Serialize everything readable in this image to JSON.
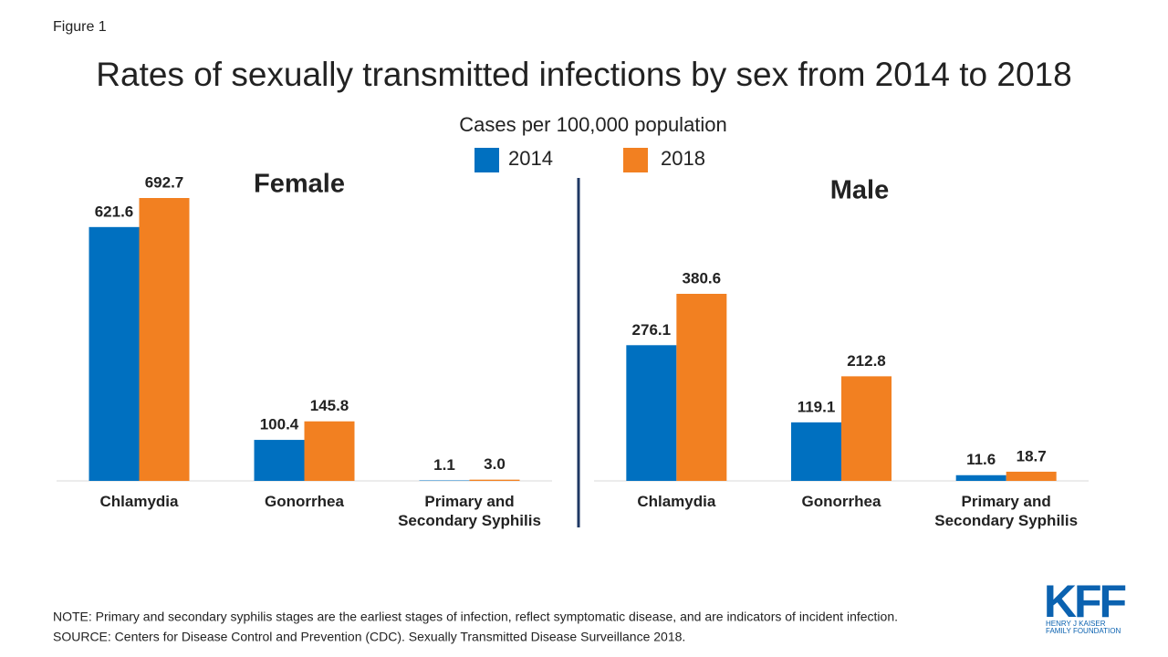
{
  "figure_label": "Figure 1",
  "title": "Rates of sexually transmitted infections by sex from 2014 to 2018",
  "subtitle": "Cases per 100,000 population",
  "chart_data": [
    {
      "type": "bar",
      "title": "Female",
      "categories": [
        "Chlamydia",
        "Gonorrhea",
        "Primary and Secondary Syphilis"
      ],
      "series": [
        {
          "name": "2014",
          "color": "#0070c0",
          "values": [
            621.6,
            100.4,
            1.1
          ],
          "value_labels": [
            "621.6",
            "100.4",
            "1.1"
          ]
        },
        {
          "name": "2018",
          "color": "#f28021",
          "values": [
            692.7,
            145.8,
            3.0
          ],
          "value_labels": [
            "692.7",
            "145.8",
            "3.0"
          ]
        }
      ]
    },
    {
      "type": "bar",
      "title": "Male",
      "categories": [
        "Chlamydia",
        "Gonorrhea",
        "Primary and Secondary Syphilis"
      ],
      "series": [
        {
          "name": "2014",
          "color": "#0070c0",
          "values": [
            276.1,
            119.1,
            11.6
          ],
          "value_labels": [
            "276.1",
            "119.1",
            "11.6"
          ]
        },
        {
          "name": "2018",
          "color": "#f28021",
          "values": [
            380.6,
            212.8,
            18.7
          ],
          "value_labels": [
            "380.6",
            "212.8",
            "18.7"
          ]
        }
      ]
    }
  ],
  "note": "NOTE: Primary and secondary syphilis stages are the earliest stages of infection, reflect symptomatic disease, and are indicators of incident infection.",
  "source": "SOURCE:  Centers for Disease Control and Prevention (CDC). Sexually Transmitted  Disease Surveillance 2018.",
  "logo": {
    "mark": "KFF",
    "line1": "HENRY J KAISER",
    "line2": "FAMILY FOUNDATION"
  }
}
